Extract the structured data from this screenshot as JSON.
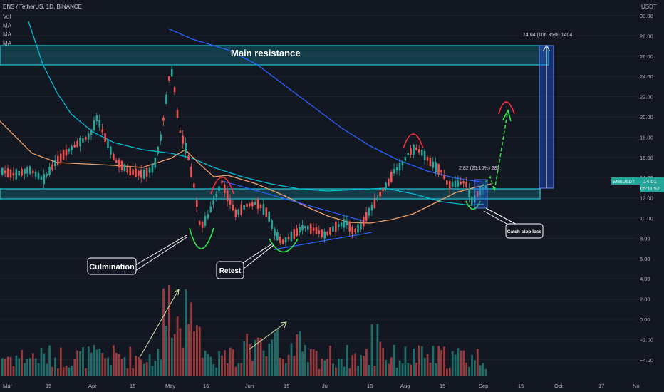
{
  "header": {
    "symbol": "ENS / TetherUS, 1D, BINANCE",
    "indicators": [
      "Vol",
      "MA",
      "MA",
      "MA"
    ]
  },
  "axis": {
    "currency": "USDT",
    "y_ticks": [
      "30.00",
      "28.00",
      "26.00",
      "24.00",
      "22.00",
      "20.00",
      "18.00",
      "16.00",
      "14.00",
      "12.00",
      "10.00",
      "8.00",
      "6.00",
      "4.00",
      "2.00",
      "0.00",
      "−2.00",
      "−4.00"
    ],
    "x_ticks": [
      "Mar",
      "15",
      "Apr",
      "15",
      "May",
      "16",
      "Jun",
      "15",
      "Jul",
      "18",
      "Aug",
      "15",
      "Sep",
      "15",
      "Oct",
      "17",
      "No"
    ]
  },
  "price_tag": {
    "symbol": "ENSUSDT",
    "price": "14.01",
    "countdown": "05:11:52"
  },
  "annotations": {
    "main_resistance": "Main resistance",
    "culmination": "Culmination",
    "retest": "Retest",
    "catch_stop_loss": "Catch stop loss",
    "measure_big": "14.04 (106.35%) 1404",
    "measure_small": "2.82 (25.10%) 282"
  },
  "colors": {
    "background": "#131722",
    "up": "#26a69a",
    "down": "#ef5350",
    "zone": "#22c5d6",
    "ma_blue": "#2962ff",
    "ma_teal": "#00bcd4",
    "ma_orange": "#f0a06a",
    "green_arrow": "#2ee84b",
    "red_arc": "#ff2d3f",
    "measure_fill": "#2a4a9a"
  }
}
